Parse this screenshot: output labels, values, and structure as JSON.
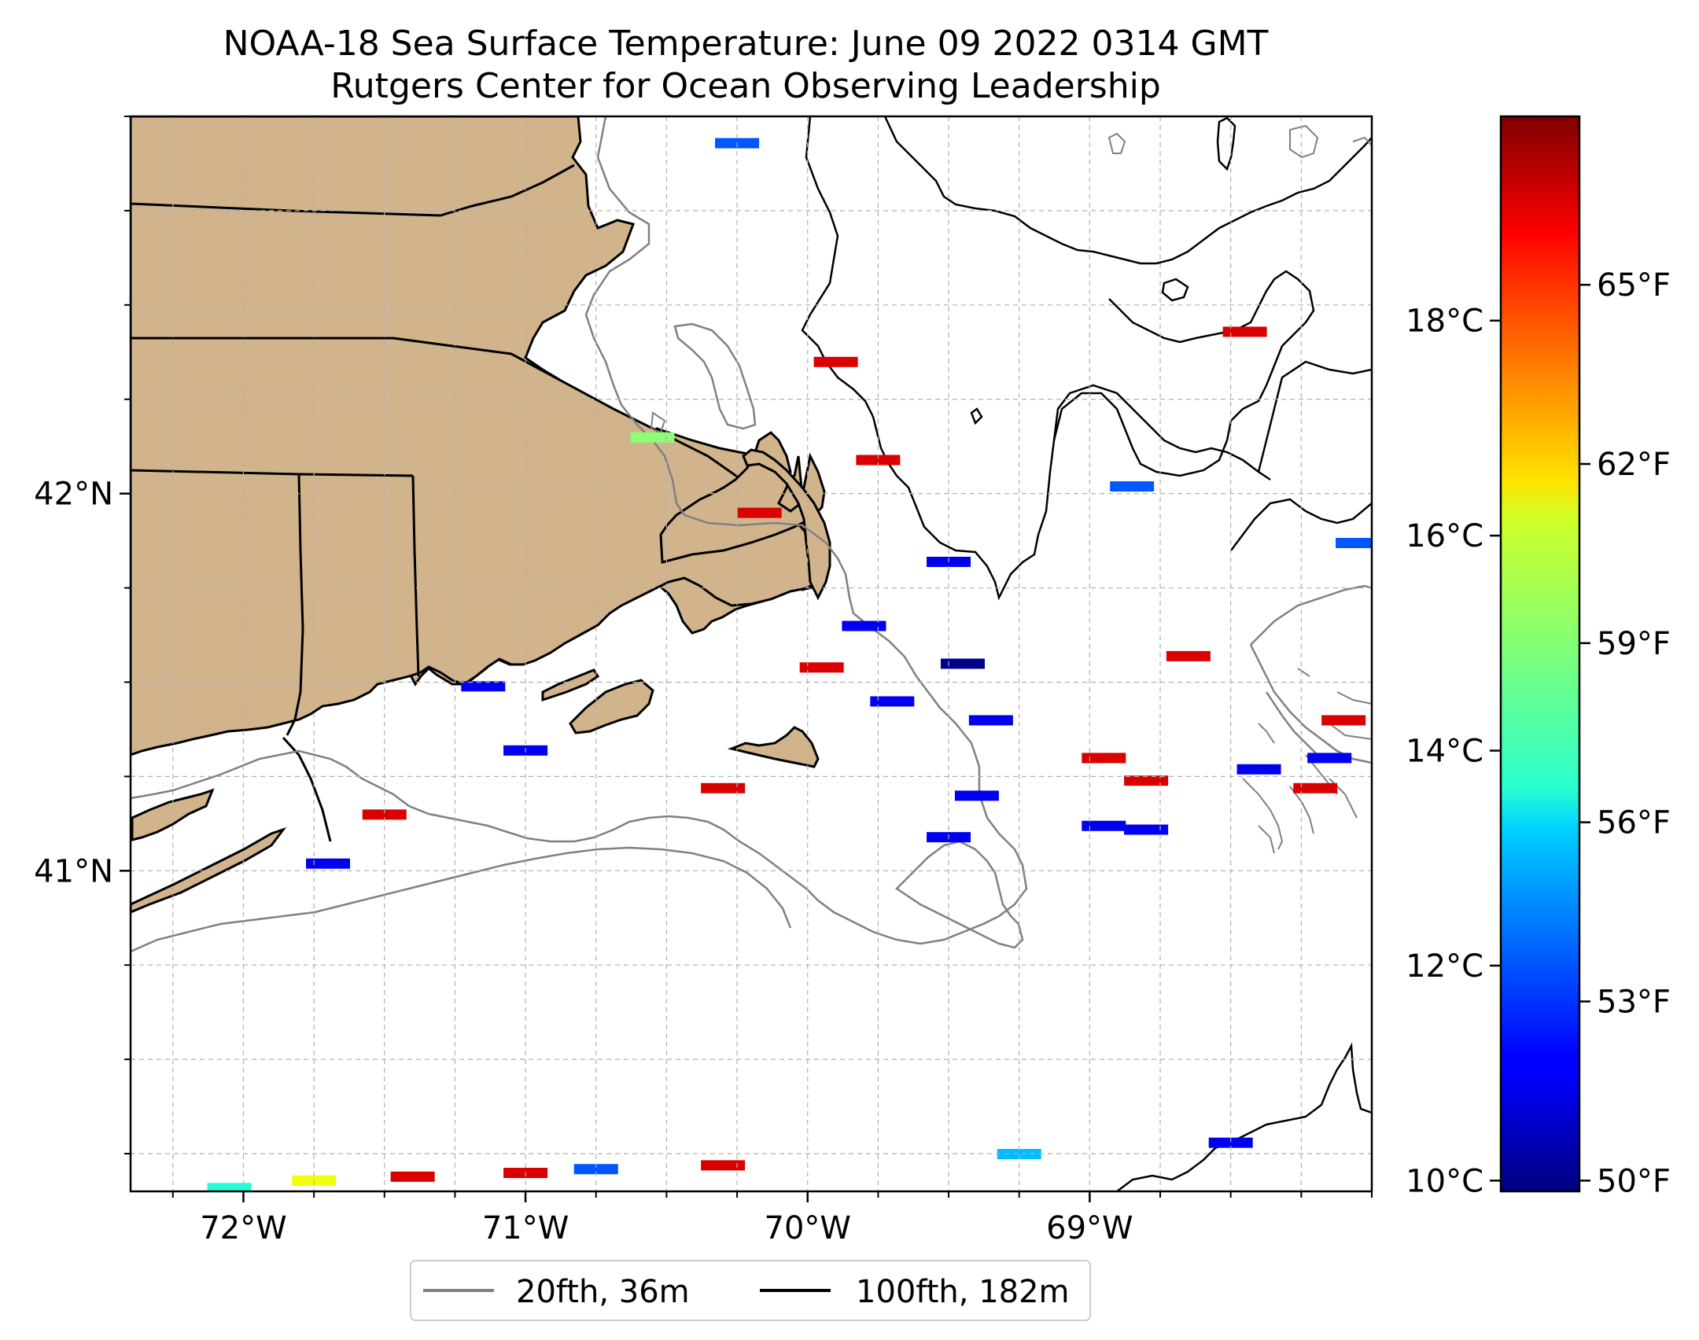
{
  "title": "NOAA-18 Sea Surface Temperature: June 09 2022 0314 GMT",
  "subtitle": "Rutgers Center for Ocean Observing Leadership",
  "colors": {
    "land": "#d2b48c",
    "ocean": "#ffffff",
    "grid": "#b0b0b0",
    "contour_20fth": "#808080",
    "contour_100fth": "#000000"
  },
  "legend": {
    "placement": "bottom-center",
    "items": [
      {
        "label": "20fth, 36m",
        "color": "#808080"
      },
      {
        "label": "100fth, 182m",
        "color": "#000000"
      }
    ]
  },
  "chart_data": {
    "type": "heatmap",
    "title": "NOAA-18 Sea Surface Temperature: June 09 2022 0314 GMT",
    "subtitle": "Rutgers Center for Ocean Observing Leadership",
    "lon_range": [
      -72.4,
      -68.0
    ],
    "lat_range": [
      40.15,
      43.0
    ],
    "x_ticks": [
      "72°W",
      "71°W",
      "70°W",
      "69°W"
    ],
    "x_tick_values": [
      -72,
      -71,
      -70,
      -69
    ],
    "y_ticks": [
      "41°N",
      "42°N"
    ],
    "y_tick_values": [
      41,
      42
    ],
    "grid": true,
    "colormap": "jet",
    "colorbar": {
      "celsius_range": [
        9.9,
        19.9
      ],
      "celsius_ticks": [
        "10°C",
        "12°C",
        "14°C",
        "16°C",
        "18°C"
      ],
      "celsius_tick_values": [
        10,
        12,
        14,
        16,
        18
      ],
      "fahrenheit_ticks": [
        "50°F",
        "53°F",
        "56°F",
        "59°F",
        "62°F",
        "65°F"
      ],
      "fahrenheit_tick_values": [
        50,
        53,
        56,
        59,
        62,
        65
      ]
    },
    "sst_patches": [
      {
        "lon": -70.25,
        "lat": 42.93,
        "temp_c": 12
      },
      {
        "lon": -70.17,
        "lat": 41.95,
        "temp_c": 19
      },
      {
        "lon": -69.9,
        "lat": 42.35,
        "temp_c": 19
      },
      {
        "lon": -69.75,
        "lat": 42.09,
        "temp_c": 19
      },
      {
        "lon": -69.5,
        "lat": 41.82,
        "temp_c": 11
      },
      {
        "lon": -69.8,
        "lat": 41.65,
        "temp_c": 11
      },
      {
        "lon": -69.45,
        "lat": 41.55,
        "temp_c": 10
      },
      {
        "lon": -69.95,
        "lat": 41.54,
        "temp_c": 19
      },
      {
        "lon": -69.7,
        "lat": 41.45,
        "temp_c": 11
      },
      {
        "lon": -69.35,
        "lat": 41.4,
        "temp_c": 11
      },
      {
        "lon": -69.4,
        "lat": 41.2,
        "temp_c": 11
      },
      {
        "lon": -69.5,
        "lat": 41.09,
        "temp_c": 11
      },
      {
        "lon": -68.95,
        "lat": 41.12,
        "temp_c": 11
      },
      {
        "lon": -68.8,
        "lat": 41.11,
        "temp_c": 11
      },
      {
        "lon": -68.95,
        "lat": 41.3,
        "temp_c": 19
      },
      {
        "lon": -68.8,
        "lat": 41.24,
        "temp_c": 19
      },
      {
        "lon": -68.65,
        "lat": 41.57,
        "temp_c": 19
      },
      {
        "lon": -68.45,
        "lat": 42.43,
        "temp_c": 19
      },
      {
        "lon": -68.85,
        "lat": 42.02,
        "temp_c": 12
      },
      {
        "lon": -68.4,
        "lat": 41.27,
        "temp_c": 11
      },
      {
        "lon": -68.15,
        "lat": 41.3,
        "temp_c": 11
      },
      {
        "lon": -68.1,
        "lat": 41.4,
        "temp_c": 19
      },
      {
        "lon": -68.2,
        "lat": 41.22,
        "temp_c": 19
      },
      {
        "lon": -68.05,
        "lat": 41.87,
        "temp_c": 12
      },
      {
        "lon": -72.05,
        "lat": 40.16,
        "temp_c": 14
      },
      {
        "lon": -71.75,
        "lat": 40.18,
        "temp_c": 16
      },
      {
        "lon": -71.7,
        "lat": 41.02,
        "temp_c": 11
      },
      {
        "lon": -71.4,
        "lat": 40.19,
        "temp_c": 19
      },
      {
        "lon": -71.0,
        "lat": 40.2,
        "temp_c": 19
      },
      {
        "lon": -70.75,
        "lat": 40.21,
        "temp_c": 12
      },
      {
        "lon": -70.3,
        "lat": 40.22,
        "temp_c": 19
      },
      {
        "lon": -69.25,
        "lat": 40.25,
        "temp_c": 13
      },
      {
        "lon": -68.5,
        "lat": 40.28,
        "temp_c": 11
      },
      {
        "lon": -71.15,
        "lat": 41.49,
        "temp_c": 11
      },
      {
        "lon": -71.0,
        "lat": 41.32,
        "temp_c": 11
      },
      {
        "lon": -70.3,
        "lat": 41.22,
        "temp_c": 19
      },
      {
        "lon": -70.55,
        "lat": 42.15,
        "temp_c": 15
      },
      {
        "lon": -71.5,
        "lat": 41.15,
        "temp_c": 19
      }
    ]
  }
}
